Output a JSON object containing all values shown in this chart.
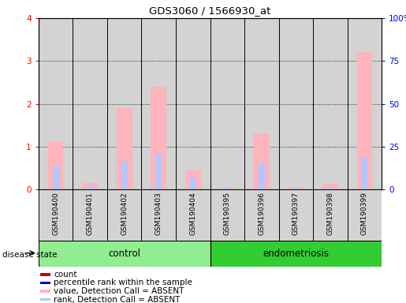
{
  "title": "GDS3060 / 1566930_at",
  "samples": [
    "GSM190400",
    "GSM190401",
    "GSM190402",
    "GSM190403",
    "GSM190404",
    "GSM190395",
    "GSM190396",
    "GSM190397",
    "GSM190398",
    "GSM190399"
  ],
  "groups": [
    "control",
    "control",
    "control",
    "control",
    "control",
    "endometriosis",
    "endometriosis",
    "endometriosis",
    "endometriosis",
    "endometriosis"
  ],
  "value_absent": [
    1.1,
    0.15,
    1.9,
    2.4,
    0.45,
    0.05,
    1.3,
    0.05,
    0.12,
    3.2
  ],
  "rank_absent": [
    0.55,
    0.08,
    0.65,
    0.85,
    0.27,
    0.03,
    0.6,
    0.03,
    0.06,
    0.75
  ],
  "ylim_left": [
    0,
    4
  ],
  "ylim_right": [
    0,
    100
  ],
  "yticks_left": [
    0,
    1,
    2,
    3,
    4
  ],
  "yticks_right": [
    0,
    25,
    50,
    75,
    100
  ],
  "yticklabels_right": [
    "0",
    "25",
    "50",
    "75",
    "100%"
  ],
  "color_value_absent": "#ffb3ba",
  "color_rank_absent": "#b3c6ff",
  "color_count": "#cc0000",
  "color_percentile": "#0000cc",
  "bar_bg": "#d3d3d3",
  "group_color_control": "#90ee90",
  "group_color_endometriosis": "#32cd32",
  "group_label_control": "control",
  "group_label_endometriosis": "endometriosis",
  "disease_state_label": "disease state",
  "legend_items": [
    {
      "label": "count",
      "color": "#cc0000"
    },
    {
      "label": "percentile rank within the sample",
      "color": "#0000cc"
    },
    {
      "label": "value, Detection Call = ABSENT",
      "color": "#ffb3ba"
    },
    {
      "label": "rank, Detection Call = ABSENT",
      "color": "#b3c6ff"
    }
  ],
  "n_control": 5,
  "n_endo": 5
}
